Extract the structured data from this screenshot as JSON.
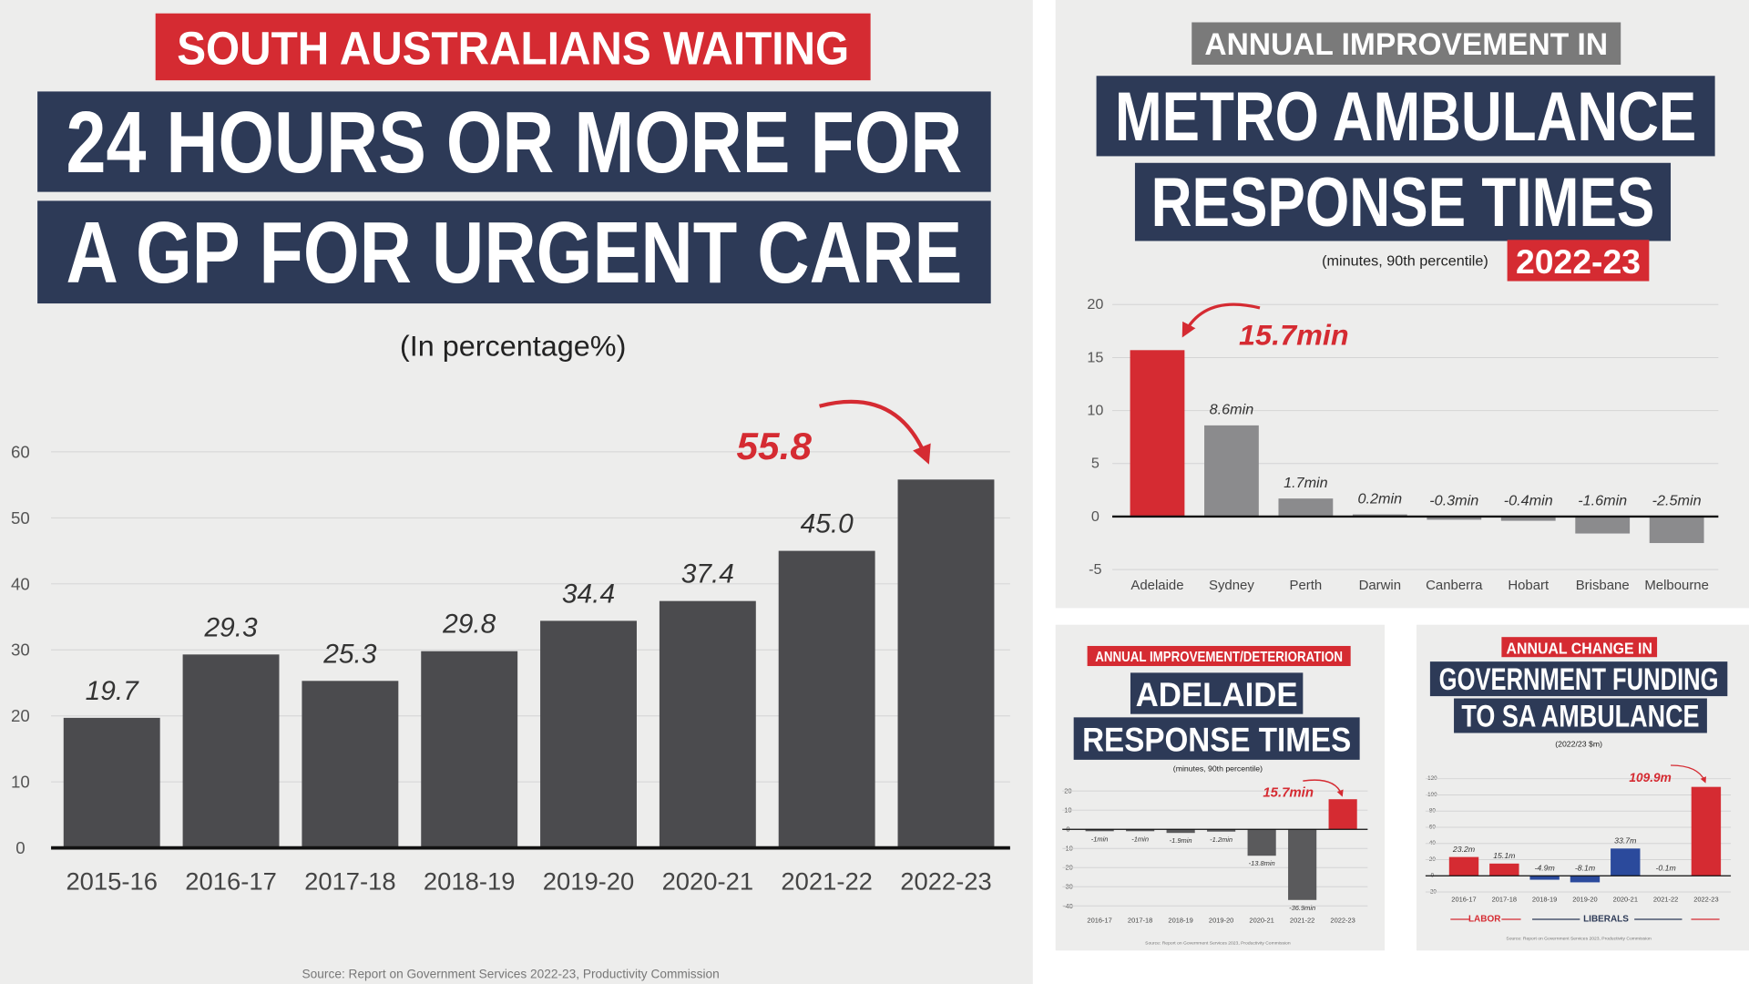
{
  "chart_data": [
    {
      "type": "bar",
      "title_lines": [
        "SOUTH AUSTRALIANS WAITING",
        "24 HOURS OR MORE FOR",
        "A GP FOR URGENT CARE"
      ],
      "subtitle": "(In percentage%)",
      "categories": [
        "2015-16",
        "2016-17",
        "2017-18",
        "2018-19",
        "2019-20",
        "2020-21",
        "2021-22",
        "2022-23"
      ],
      "values": [
        19.7,
        29.3,
        25.3,
        29.8,
        34.4,
        37.4,
        45.0,
        55.8
      ],
      "value_labels": [
        "19.7",
        "29.3",
        "25.3",
        "29.8",
        "34.4",
        "37.4",
        "45.0",
        "55.8"
      ],
      "colors": [
        "#4b4b4e",
        "#4b4b4e",
        "#4b4b4e",
        "#4b4b4e",
        "#4b4b4e",
        "#4b4b4e",
        "#4b4b4e",
        "#4b4b4e"
      ],
      "callout_color": "#d52b32",
      "ylim": [
        0,
        60
      ],
      "yticks": [
        0,
        10,
        20,
        30,
        40,
        50,
        60
      ],
      "grid": true,
      "source": "Source: Report on Government Services 2022-23, Productivity Commission"
    },
    {
      "type": "bar",
      "title_lines": [
        "ANNUAL IMPROVEMENT IN",
        "METRO AMBULANCE",
        "RESPONSE TIMES"
      ],
      "subtitle": "(minutes, 90th percentile)",
      "period": "2022-23",
      "categories": [
        "Adelaide",
        "Sydney",
        "Perth",
        "Darwin",
        "Canberra",
        "Hobart",
        "Brisbane",
        "Melbourne"
      ],
      "values": [
        15.7,
        8.6,
        1.7,
        0.2,
        -0.3,
        -0.4,
        -1.6,
        -2.5
      ],
      "value_labels": [
        "15.7min",
        "8.6min",
        "1.7min",
        "0.2min",
        "-0.3min",
        "-0.4min",
        "-1.6min",
        "-2.5min"
      ],
      "colors": [
        "#d52b32",
        "#8b8b8d",
        "#8b8b8d",
        "#8b8b8d",
        "#8b8b8d",
        "#8b8b8d",
        "#8b8b8d",
        "#8b8b8d"
      ],
      "callout_color": "#d52b32",
      "ylim": [
        -5,
        20
      ],
      "yticks": [
        -5,
        0,
        5,
        10,
        15,
        20
      ],
      "grid": true
    },
    {
      "type": "bar",
      "title_lines": [
        "ANNUAL IMPROVEMENT/DETERIORATION",
        "ADELAIDE",
        "RESPONSE TIMES"
      ],
      "subtitle": "(minutes, 90th percentile)",
      "categories": [
        "2016-17",
        "2017-18",
        "2018-19",
        "2019-20",
        "2020-21",
        "2021-22",
        "2022-23"
      ],
      "values": [
        -1,
        -1,
        -1.9,
        -1.2,
        -13.8,
        -36.9,
        15.7
      ],
      "value_labels": [
        "-1min",
        "-1min",
        "-1.9min",
        "-1.2min",
        "-13.8min",
        "-36.9min",
        "15.7min"
      ],
      "colors": [
        "#5a5a5c",
        "#5a5a5c",
        "#5a5a5c",
        "#5a5a5c",
        "#5a5a5c",
        "#5a5a5c",
        "#d52b32"
      ],
      "callout_color": "#d52b32",
      "ylim": [
        -40,
        20
      ],
      "yticks": [
        -40,
        -30,
        -20,
        -10,
        0,
        10,
        20
      ],
      "grid": true,
      "source": "Source: Report on Government Services 2023, Productivity Commission"
    },
    {
      "type": "bar",
      "title_lines": [
        "ANNUAL CHANGE IN",
        "GOVERNMENT FUNDING",
        "TO SA AMBULANCE"
      ],
      "subtitle": "(2022/23 $m)",
      "categories": [
        "2016-17",
        "2017-18",
        "2018-19",
        "2019-20",
        "2020-21",
        "2021-22",
        "2022-23"
      ],
      "values": [
        23.2,
        15.1,
        -4.9,
        -8.1,
        33.7,
        -0.1,
        109.9
      ],
      "value_labels": [
        "23.2m",
        "15.1m",
        "-4.9m",
        "-8.1m",
        "33.7m",
        "-0.1m",
        "109.9m"
      ],
      "colors": [
        "#d52b32",
        "#d52b32",
        "#2b4a9c",
        "#2b4a9c",
        "#2b4a9c",
        "#2b4a9c",
        "#d52b32"
      ],
      "callout_color": "#d52b32",
      "annotations": [
        "LABOR",
        "LIBERALS"
      ],
      "ylim": [
        -20,
        120
      ],
      "yticks": [
        -20,
        0,
        20,
        40,
        60,
        80,
        100,
        120
      ],
      "grid": true,
      "source": "Source: Report on Government Services 2023, Productivity Commission"
    }
  ]
}
